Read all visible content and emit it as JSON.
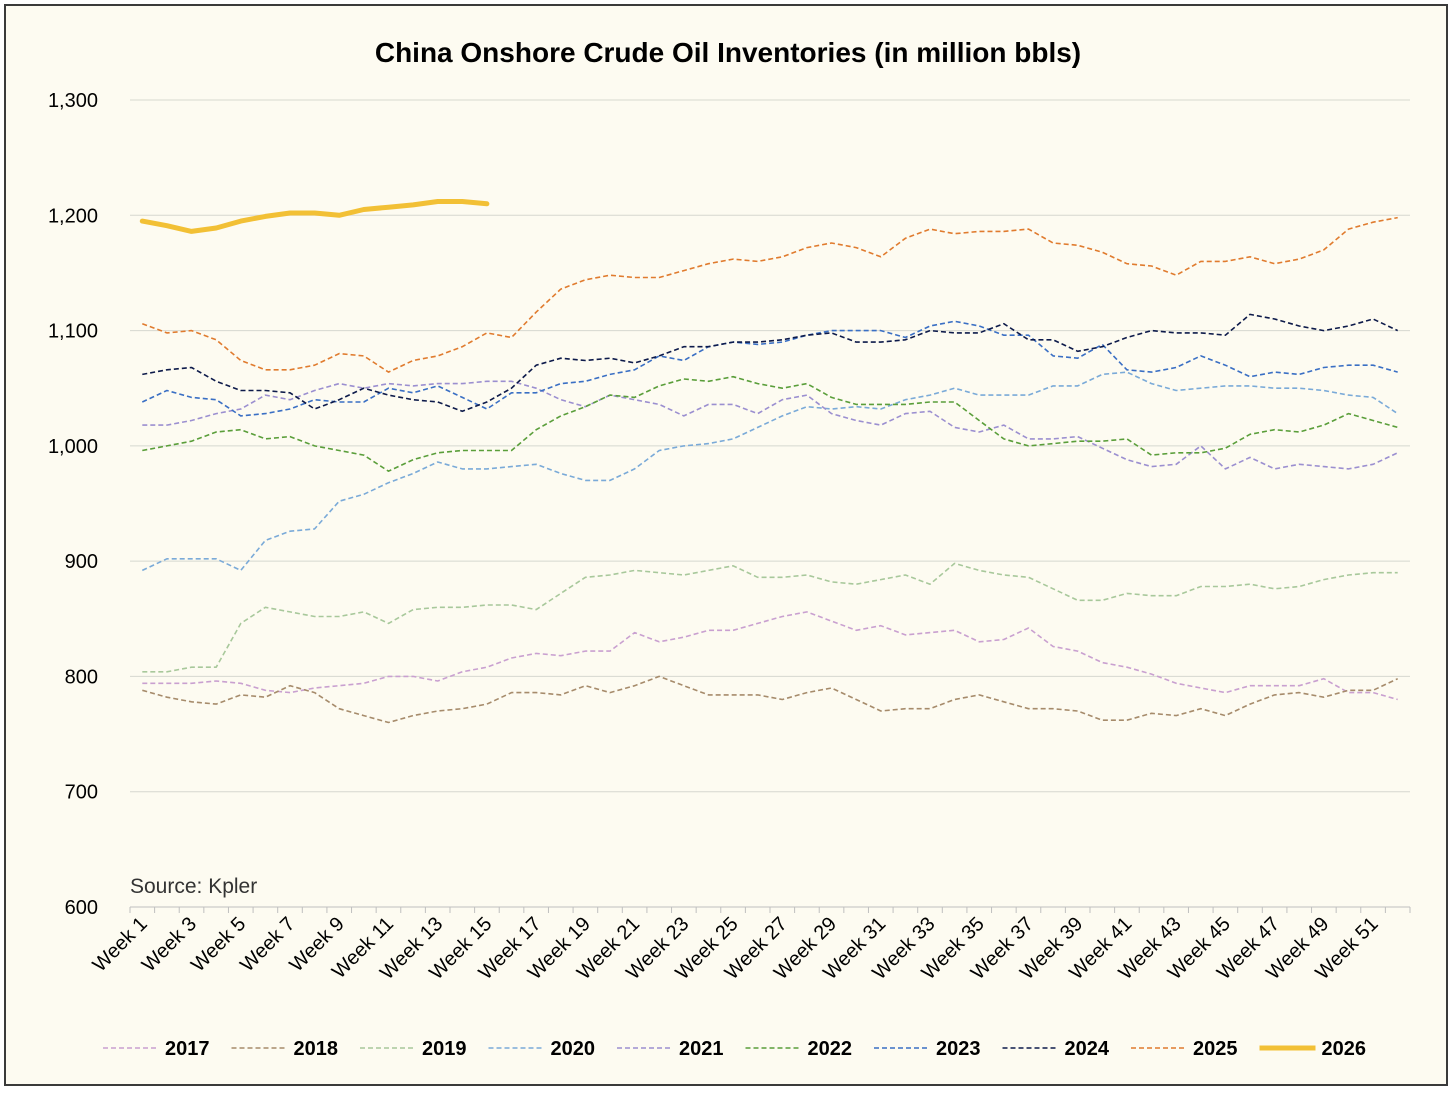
{
  "chart_data": {
    "type": "line",
    "title": "China Onshore Crude Oil Inventories (in million bbls)",
    "annotation": "Source: Kpler",
    "xlabel": "",
    "ylabel": "",
    "ylim": [
      600,
      1300
    ],
    "yticks": [
      600,
      700,
      800,
      900,
      1000,
      1100,
      1200,
      1300
    ],
    "ytick_labels": [
      "600",
      "700",
      "800",
      "900",
      "1,000",
      "1,100",
      "1,200",
      "1,300"
    ],
    "grid": "horizontal",
    "legend_position": "bottom",
    "x_categories_count": 52,
    "xtick_labels": [
      "Week 1",
      "Week 3",
      "Week 5",
      "Week 7",
      "Week 9",
      "Week 11",
      "Week 13",
      "Week 15",
      "Week 17",
      "Week 19",
      "Week 21",
      "Week 23",
      "Week 25",
      "Week 27",
      "Week 29",
      "Week 31",
      "Week 33",
      "Week 35",
      "Week 37",
      "Week 39",
      "Week 41",
      "Week 43",
      "Week 45",
      "Week 47",
      "Week 49",
      "Week 51"
    ],
    "series": [
      {
        "name": "2017",
        "color": "#c9a0d0",
        "dashed": true,
        "values": [
          794,
          794,
          794,
          796,
          794,
          788,
          786,
          790,
          792,
          794,
          800,
          800,
          796,
          804,
          808,
          816,
          820,
          818,
          822,
          822,
          838,
          830,
          834,
          840,
          840,
          846,
          852,
          856,
          848,
          840,
          844,
          836,
          838,
          840,
          830,
          832,
          842,
          826,
          822,
          812,
          808,
          802,
          794,
          790,
          786,
          792,
          792,
          792,
          798,
          786,
          786,
          780
        ]
      },
      {
        "name": "2018",
        "color": "#a68b6b",
        "dashed": true,
        "values": [
          788,
          782,
          778,
          776,
          784,
          782,
          792,
          786,
          772,
          766,
          760,
          766,
          770,
          772,
          776,
          786,
          786,
          784,
          792,
          786,
          792,
          800,
          792,
          784,
          784,
          784,
          780,
          786,
          790,
          780,
          770,
          772,
          772,
          780,
          784,
          778,
          772,
          772,
          770,
          762,
          762,
          768,
          766,
          772,
          766,
          776,
          784,
          786,
          782,
          788,
          788,
          798
        ]
      },
      {
        "name": "2019",
        "color": "#a8c89b",
        "dashed": true,
        "values": [
          804,
          804,
          808,
          808,
          846,
          860,
          856,
          852,
          852,
          856,
          846,
          858,
          860,
          860,
          862,
          862,
          858,
          872,
          886,
          888,
          892,
          890,
          888,
          892,
          896,
          886,
          886,
          888,
          882,
          880,
          884,
          888,
          880,
          898,
          892,
          888,
          886,
          876,
          866,
          866,
          872,
          870,
          870,
          878,
          878,
          880,
          876,
          878,
          884,
          888,
          890,
          890
        ]
      },
      {
        "name": "2020",
        "color": "#7aaad8",
        "dashed": true,
        "values": [
          892,
          902,
          902,
          902,
          892,
          918,
          926,
          928,
          952,
          958,
          968,
          976,
          986,
          980,
          980,
          982,
          984,
          976,
          970,
          970,
          980,
          996,
          1000,
          1002,
          1006,
          1016,
          1026,
          1034,
          1032,
          1034,
          1032,
          1040,
          1044,
          1050,
          1044,
          1044,
          1044,
          1052,
          1052,
          1062,
          1064,
          1054,
          1048,
          1050,
          1052,
          1052,
          1050,
          1050,
          1048,
          1044,
          1042,
          1028
        ]
      },
      {
        "name": "2021",
        "color": "#9b8fd0",
        "dashed": true,
        "values": [
          1018,
          1018,
          1022,
          1028,
          1032,
          1044,
          1040,
          1048,
          1054,
          1050,
          1054,
          1052,
          1054,
          1054,
          1056,
          1056,
          1050,
          1040,
          1034,
          1044,
          1040,
          1036,
          1026,
          1036,
          1036,
          1028,
          1040,
          1044,
          1028,
          1022,
          1018,
          1028,
          1030,
          1016,
          1012,
          1018,
          1006,
          1006,
          1008,
          998,
          988,
          982,
          984,
          1000,
          980,
          990,
          980,
          984,
          982,
          980,
          984,
          994
        ]
      },
      {
        "name": "2022",
        "color": "#5a9e3a",
        "dashed": true,
        "values": [
          996,
          1000,
          1004,
          1012,
          1014,
          1006,
          1008,
          1000,
          996,
          992,
          978,
          988,
          994,
          996,
          996,
          996,
          1014,
          1026,
          1034,
          1044,
          1042,
          1052,
          1058,
          1056,
          1060,
          1054,
          1050,
          1054,
          1042,
          1036,
          1036,
          1036,
          1038,
          1038,
          1022,
          1006,
          1000,
          1002,
          1004,
          1004,
          1006,
          992,
          994,
          994,
          998,
          1010,
          1014,
          1012,
          1018,
          1028,
          1022,
          1016
        ]
      },
      {
        "name": "2023",
        "color": "#3a6fc4",
        "dashed": true,
        "values": [
          1038,
          1048,
          1042,
          1040,
          1026,
          1028,
          1032,
          1040,
          1038,
          1038,
          1050,
          1046,
          1052,
          1042,
          1032,
          1046,
          1046,
          1054,
          1056,
          1062,
          1066,
          1078,
          1074,
          1086,
          1090,
          1088,
          1090,
          1096,
          1100,
          1100,
          1100,
          1094,
          1104,
          1108,
          1104,
          1096,
          1096,
          1078,
          1076,
          1088,
          1066,
          1064,
          1068,
          1078,
          1070,
          1060,
          1064,
          1062,
          1068,
          1070,
          1070,
          1064
        ]
      },
      {
        "name": "2024",
        "color": "#0d1a4a",
        "dashed": true,
        "values": [
          1062,
          1066,
          1068,
          1056,
          1048,
          1048,
          1046,
          1032,
          1040,
          1050,
          1044,
          1040,
          1038,
          1030,
          1038,
          1050,
          1070,
          1076,
          1074,
          1076,
          1072,
          1078,
          1086,
          1086,
          1090,
          1090,
          1092,
          1096,
          1098,
          1090,
          1090,
          1092,
          1100,
          1098,
          1098,
          1106,
          1092,
          1092,
          1082,
          1086,
          1094,
          1100,
          1098,
          1098,
          1096,
          1114,
          1110,
          1104,
          1100,
          1104,
          1110,
          1100
        ]
      },
      {
        "name": "2025",
        "color": "#e07b2e",
        "dashed": true,
        "values": [
          1106,
          1098,
          1100,
          1092,
          1074,
          1066,
          1066,
          1070,
          1080,
          1078,
          1064,
          1074,
          1078,
          1086,
          1098,
          1094,
          1116,
          1136,
          1144,
          1148,
          1146,
          1146,
          1152,
          1158,
          1162,
          1160,
          1164,
          1172,
          1176,
          1172,
          1164,
          1180,
          1188,
          1184,
          1186,
          1186,
          1188,
          1176,
          1174,
          1168,
          1158,
          1156,
          1148,
          1160,
          1160,
          1164,
          1158,
          1162,
          1170,
          1188,
          1194,
          1198
        ]
      },
      {
        "name": "2026",
        "color": "#f2c035",
        "dashed": false,
        "values": [
          1195,
          1191,
          1186,
          1189,
          1195,
          1199,
          1202,
          1202,
          1200,
          1205,
          1207,
          1209,
          1212,
          1212,
          1210
        ]
      }
    ]
  }
}
